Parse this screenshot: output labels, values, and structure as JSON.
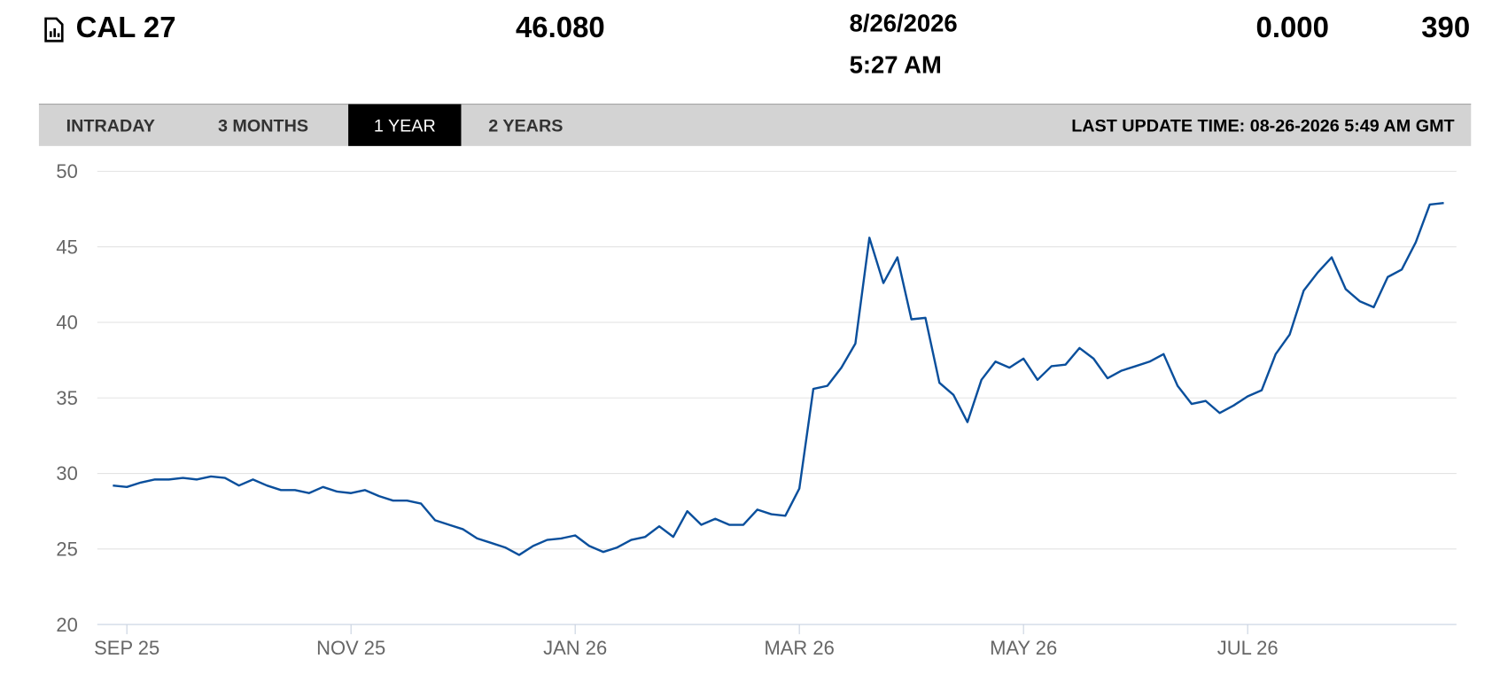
{
  "header": {
    "symbol": "CAL 27",
    "price": "46.080",
    "date": "8/26/2026",
    "time": "5:27 AM",
    "change": "0.000",
    "volume": "390"
  },
  "tabs": [
    "INTRADAY",
    "3 MONTHS",
    "1 YEAR",
    "2 YEARS"
  ],
  "last_update": "LAST UPDATE TIME: 08-26-2026 5:49 AM GMT",
  "chart_data": {
    "type": "line",
    "categories": [
      null,
      "SEP 25",
      null,
      null,
      null,
      null,
      null,
      null,
      null,
      null,
      null,
      null,
      null,
      null,
      null,
      null,
      null,
      "NOV 25",
      null,
      null,
      null,
      null,
      null,
      null,
      null,
      null,
      null,
      null,
      null,
      null,
      null,
      null,
      null,
      "JAN 26",
      null,
      null,
      null,
      null,
      null,
      null,
      null,
      null,
      null,
      null,
      null,
      null,
      null,
      null,
      null,
      "MAR 26",
      null,
      null,
      null,
      null,
      null,
      null,
      null,
      null,
      null,
      null,
      null,
      null,
      null,
      null,
      null,
      "MAY 26",
      null,
      null,
      null,
      null,
      null,
      null,
      null,
      null,
      null,
      null,
      null,
      null,
      null,
      null,
      null,
      "JUL 26",
      null,
      null,
      null,
      null,
      null,
      null,
      null,
      null,
      null,
      null,
      null,
      null,
      null,
      null
    ],
    "series": [
      {
        "name": "CAL 27",
        "color": "#0a4f9c",
        "values": [
          29.2,
          29.1,
          29.4,
          29.6,
          29.6,
          29.7,
          29.6,
          29.8,
          29.7,
          29.2,
          29.6,
          29.2,
          28.9,
          28.9,
          28.7,
          29.1,
          28.8,
          28.7,
          28.9,
          28.5,
          28.2,
          28.2,
          28.0,
          26.9,
          26.6,
          26.3,
          25.7,
          25.4,
          25.1,
          24.6,
          25.2,
          25.6,
          25.7,
          25.9,
          25.2,
          24.8,
          25.1,
          25.6,
          25.8,
          26.5,
          25.8,
          27.5,
          26.6,
          27.0,
          26.6,
          26.6,
          27.6,
          27.3,
          27.2,
          29.0,
          35.6,
          35.8,
          37.0,
          38.6,
          45.6,
          42.6,
          44.3,
          40.2,
          40.3,
          36.0,
          35.2,
          33.4,
          36.2,
          37.4,
          37.0,
          37.6,
          36.2,
          37.1,
          37.2,
          38.3,
          37.6,
          36.3,
          36.8,
          37.1,
          37.4,
          37.9,
          35.8,
          34.6,
          34.8,
          34.0,
          34.5,
          35.1,
          35.5,
          37.9,
          39.2,
          42.1,
          43.3,
          44.3,
          42.2,
          41.4,
          41.0,
          43.0,
          43.5,
          45.3,
          47.8,
          47.9
        ]
      }
    ],
    "ylim": [
      20,
      50
    ],
    "yticks": [
      20,
      25,
      30,
      35,
      40,
      45,
      50
    ],
    "grid": true
  }
}
